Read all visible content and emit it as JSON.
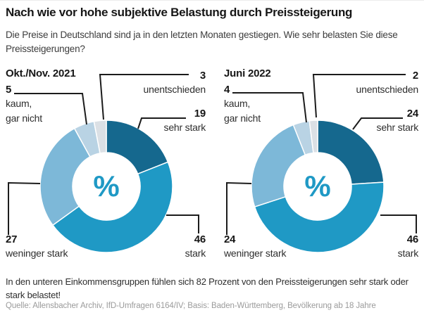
{
  "header": {
    "title": "Nach wie vor hohe subjektive Belastung durch Preissteigerung",
    "subtitle": "Die Preise in Deutschland sind ja in den letzten Monaten gestiegen. Wie sehr belasten Sie diese Preissteigerungen?"
  },
  "chart_data": [
    {
      "type": "pie",
      "subtype": "donut",
      "title": "Okt./Nov. 2021",
      "unit_label": "%",
      "categories": [
        "sehr stark",
        "stark",
        "weninger stark",
        "kaum, gar nicht",
        "unentschieden"
      ],
      "values": [
        19,
        46,
        27,
        5,
        3
      ],
      "colors": [
        "#15688e",
        "#1f99c5",
        "#7db8d8",
        "#b9d3e4",
        "#dbe0e5"
      ],
      "legend_position": "callout-labels",
      "start_angle_deg": 0,
      "direction": "clockwise"
    },
    {
      "type": "pie",
      "subtype": "donut",
      "title": "Juni 2022",
      "unit_label": "%",
      "categories": [
        "sehr stark",
        "stark",
        "weninger stark",
        "kaum, gar nicht",
        "unentschieden"
      ],
      "values": [
        24,
        46,
        24,
        4,
        2
      ],
      "colors": [
        "#15688e",
        "#1f99c5",
        "#7db8d8",
        "#b9d3e4",
        "#dbe0e5"
      ],
      "legend_position": "callout-labels",
      "start_angle_deg": 0,
      "direction": "clockwise"
    }
  ],
  "footer": {
    "note": "In den unteren Einkommensgruppen fühlen sich 82 Prozent von den Preissteigerungen sehr stark oder stark belastet!",
    "source": "Quelle: Allensbacher Archiv, IfD-Umfragen 6164/IV; Basis: Baden-Württemberg, Bevölkerung ab 18 Jahre"
  }
}
